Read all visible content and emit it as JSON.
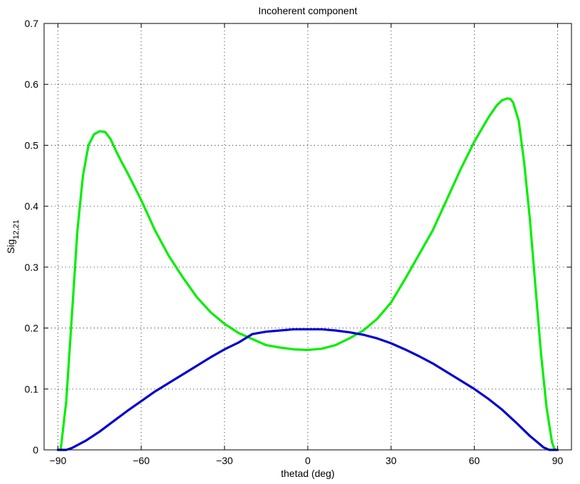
{
  "chart_data": {
    "type": "line",
    "title": "Incoherent component",
    "xlabel": "thetad (deg)",
    "ylabel_main": "Sig",
    "ylabel_sub": "12,21",
    "xlim": [
      -95,
      95
    ],
    "ylim": [
      0,
      0.7
    ],
    "x_ticks": [
      -90,
      -60,
      -30,
      0,
      30,
      60,
      90
    ],
    "x_tick_labels": [
      "−90",
      "−60",
      "−30",
      "0",
      "30",
      "60",
      "90"
    ],
    "y_ticks": [
      0,
      0.1,
      0.2,
      0.3,
      0.4,
      0.5,
      0.6,
      0.7
    ],
    "y_tick_labels": [
      "0",
      "0.1",
      "0.2",
      "0.3",
      "0.4",
      "0.5",
      "0.6",
      "0.7"
    ],
    "grid": true,
    "series": [
      {
        "color": "#00ee00",
        "x": [
          -89,
          -87,
          -85,
          -83,
          -81,
          -79,
          -77,
          -75,
          -73,
          -71,
          -69,
          -67,
          -65,
          -60,
          -55,
          -50,
          -45,
          -40,
          -35,
          -30,
          -25,
          -20,
          -15,
          -10,
          -5,
          0,
          5,
          10,
          15,
          20,
          25,
          30,
          35,
          40,
          45,
          50,
          55,
          60,
          65,
          68,
          70,
          72,
          73,
          74,
          76,
          78,
          80,
          82,
          84,
          86,
          88,
          89
        ],
        "y": [
          0.0,
          0.08,
          0.22,
          0.36,
          0.45,
          0.5,
          0.518,
          0.523,
          0.522,
          0.51,
          0.49,
          0.472,
          0.455,
          0.41,
          0.36,
          0.318,
          0.283,
          0.251,
          0.226,
          0.207,
          0.192,
          0.182,
          0.172,
          0.168,
          0.165,
          0.164,
          0.166,
          0.172,
          0.183,
          0.196,
          0.215,
          0.242,
          0.28,
          0.32,
          0.36,
          0.41,
          0.46,
          0.506,
          0.545,
          0.565,
          0.574,
          0.577,
          0.576,
          0.57,
          0.54,
          0.47,
          0.38,
          0.27,
          0.16,
          0.07,
          0.012,
          0.0
        ]
      },
      {
        "color": "#0000cc",
        "x": [
          -90,
          -87,
          -85,
          -80,
          -75,
          -70,
          -65,
          -60,
          -55,
          -50,
          -45,
          -40,
          -35,
          -30,
          -25,
          -20,
          -15,
          -10,
          -5,
          0,
          5,
          10,
          15,
          20,
          25,
          30,
          35,
          40,
          45,
          50,
          55,
          60,
          65,
          70,
          75,
          80,
          85,
          87,
          90
        ],
        "y": [
          0.0,
          0.0,
          0.003,
          0.015,
          0.03,
          0.047,
          0.064,
          0.08,
          0.096,
          0.11,
          0.124,
          0.138,
          0.152,
          0.165,
          0.176,
          0.19,
          0.194,
          0.196,
          0.198,
          0.198,
          0.198,
          0.196,
          0.193,
          0.189,
          0.183,
          0.175,
          0.165,
          0.154,
          0.142,
          0.128,
          0.114,
          0.1,
          0.084,
          0.066,
          0.045,
          0.023,
          0.004,
          0.0,
          0.0
        ]
      }
    ]
  }
}
